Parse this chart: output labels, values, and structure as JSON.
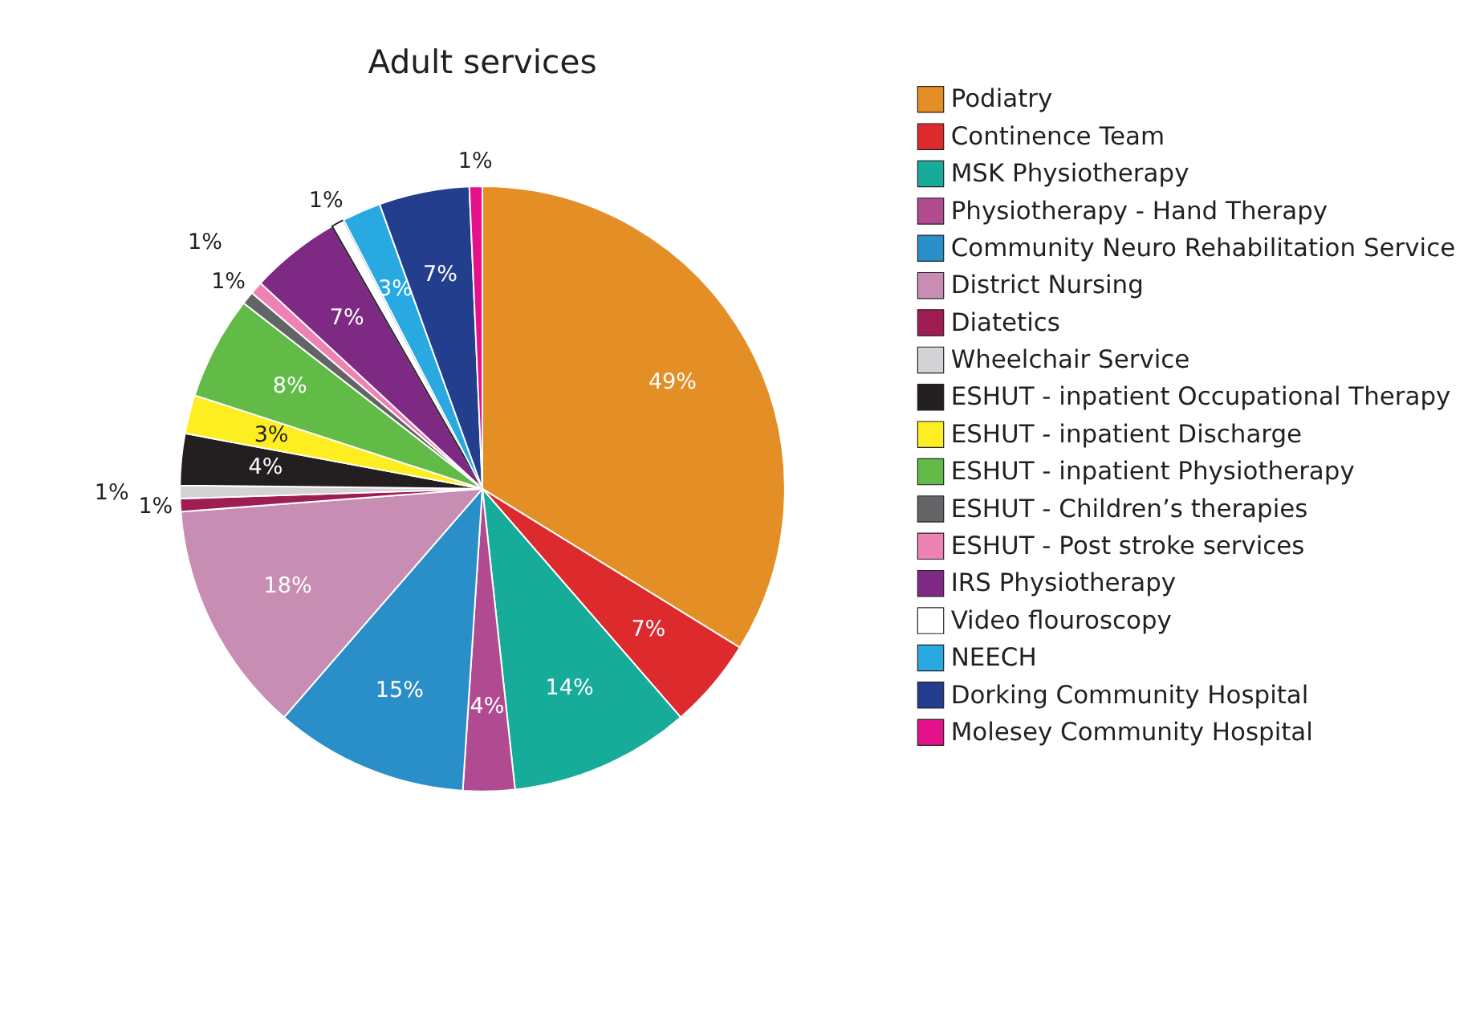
{
  "chart_data": {
    "type": "pie",
    "title": "Adult services",
    "categories": [
      "Podiatry",
      "Continence Team",
      "MSK Physiotherapy",
      "Physiotherapy - Hand Therapy",
      "Community Neuro Rehabilitation Service",
      "District Nursing",
      "Diatetics",
      "Wheelchair Service",
      "ESHUT - inpatient Occupational Therapy",
      "ESHUT - inpatient Discharge",
      "ESHUT - inpatient Physiotherapy",
      "ESHUT - Children’s therapies",
      "ESHUT - Post stroke services",
      "IRS Physiotherapy",
      "Video flouroscopy",
      "NEECH",
      "Dorking Community Hospital",
      "Molesey Community Hospital"
    ],
    "values": [
      49,
      7,
      14,
      4,
      15,
      18,
      1,
      1,
      4,
      3,
      8,
      1,
      1,
      7,
      1,
      3,
      7,
      1
    ],
    "value_labels": [
      "49%",
      "7%",
      "14%",
      "4%",
      "15%",
      "18%",
      "1%",
      "1%",
      "4%",
      "3%",
      "8%",
      "1%",
      "1%",
      "7%",
      "1%",
      "3%",
      "7%",
      "1%"
    ],
    "colors": [
      "#e48e26",
      "#dc2a2d",
      "#17ab9a",
      "#b04a91",
      "#2a8ec9",
      "#c88db3",
      "#a01d54",
      "#d3d3d5",
      "#231f20",
      "#fcee21",
      "#63bb47",
      "#636466",
      "#ee82b5",
      "#7e2a84",
      "#ffffff",
      "#28a9e1",
      "#243e8e",
      "#e5118b"
    ],
    "legend": "right"
  }
}
